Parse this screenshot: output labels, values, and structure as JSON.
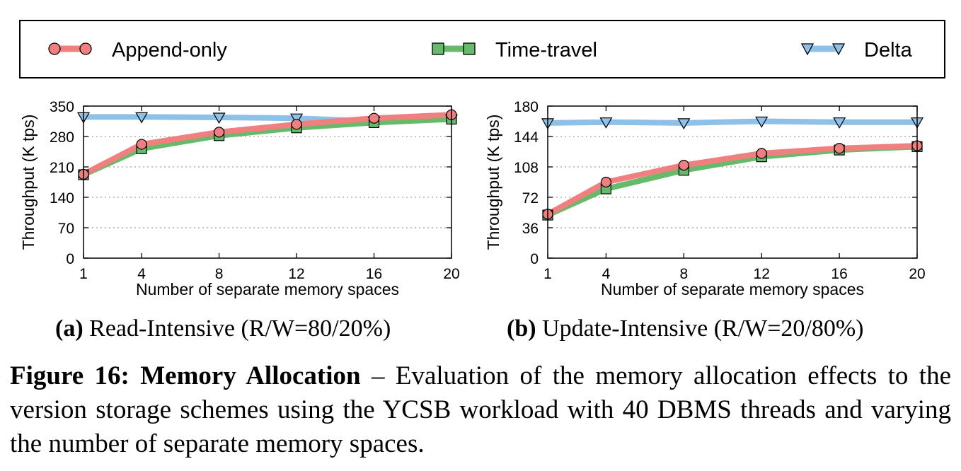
{
  "legend": {
    "items": [
      {
        "label": "Append-only",
        "color": "#f08080",
        "marker": "circle"
      },
      {
        "label": "Time-travel",
        "color": "#66bb6a",
        "marker": "square"
      },
      {
        "label": "Delta",
        "color": "#8ec1e8",
        "marker": "triangle-down"
      }
    ]
  },
  "captions": {
    "a_tag": "(a)",
    "a_text": "Read-Intensive (R/W=80/20%)",
    "b_tag": "(b)",
    "b_text": "Update-Intensive (R/W=20/80%)",
    "figure_tag": "Figure 16:",
    "figure_title": "Memory Allocation",
    "figure_text": "– Evaluation of the memory allocation effects to the version storage schemes using the YCSB workload with 40 DBMS threads and varying the number of separate memory spaces."
  },
  "chart_data": [
    {
      "type": "line",
      "id": "a",
      "title": "Read-Intensive (R/W=80/20%)",
      "xlabel": "Number of separate memory spaces",
      "ylabel": "Throughput (K tps)",
      "x": [
        1,
        4,
        8,
        12,
        16,
        20
      ],
      "xlim": [
        1,
        20
      ],
      "ylim": [
        0,
        350
      ],
      "yticks": [
        0,
        70,
        140,
        210,
        280,
        350
      ],
      "grid": true,
      "series": [
        {
          "name": "Append-only",
          "values": [
            193,
            262,
            290,
            308,
            322,
            330
          ]
        },
        {
          "name": "Time-travel",
          "values": [
            192,
            252,
            282,
            300,
            312,
            320
          ]
        },
        {
          "name": "Delta",
          "values": [
            325,
            325,
            324,
            322,
            315,
            320
          ]
        }
      ]
    },
    {
      "type": "line",
      "id": "b",
      "title": "Update-Intensive (R/W=20/80%)",
      "xlabel": "Number of separate memory spaces",
      "ylabel": "Throughput (K tps)",
      "x": [
        1,
        4,
        8,
        12,
        16,
        20
      ],
      "xlim": [
        1,
        20
      ],
      "ylim": [
        0,
        180
      ],
      "yticks": [
        0,
        36,
        72,
        108,
        144,
        180
      ],
      "grid": true,
      "series": [
        {
          "name": "Append-only",
          "values": [
            52,
            90,
            110,
            124,
            130,
            133
          ]
        },
        {
          "name": "Time-travel",
          "values": [
            51,
            82,
            104,
            120,
            128,
            132
          ]
        },
        {
          "name": "Delta",
          "values": [
            160,
            161,
            160,
            162,
            161,
            161
          ]
        }
      ]
    }
  ]
}
